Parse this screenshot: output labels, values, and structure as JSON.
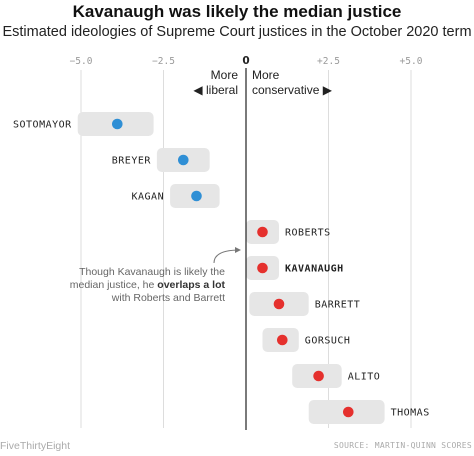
{
  "title": "Kavanaugh was likely the median justice",
  "subtitle": "Estimated ideologies of Supreme Court justices in the October 2020 term",
  "footer": {
    "brand": "FiveThirtyEight",
    "source": "SOURCE: MARTIN-QUINN SCORES"
  },
  "chart_data": {
    "type": "scatter",
    "subtype": "dot-with-range",
    "xlim": [
      -5.5,
      6.3
    ],
    "x_ticks": [
      {
        "value": -5.0,
        "label": "−5.0"
      },
      {
        "value": -2.5,
        "label": "−2.5"
      },
      {
        "value": 0,
        "label": "0"
      },
      {
        "value": 2.5,
        "label": "+2.5"
      },
      {
        "value": 5.0,
        "label": "+5.0"
      }
    ],
    "grid": true,
    "direction_labels": {
      "left_line1": "More",
      "left_line2": "◀ liberal",
      "right_line1": "More",
      "right_line2": "conservative ▶"
    },
    "justices": [
      {
        "name": "SOTOMAYOR",
        "estimate": -3.9,
        "low": -5.1,
        "high": -2.8,
        "label_side": "left",
        "bold": false,
        "color": "#2f8fd5"
      },
      {
        "name": "BREYER",
        "estimate": -1.9,
        "low": -2.7,
        "high": -1.1,
        "label_side": "left",
        "bold": false,
        "color": "#2f8fd5"
      },
      {
        "name": "KAGAN",
        "estimate": -1.5,
        "low": -2.3,
        "high": -0.8,
        "label_side": "left",
        "bold": false,
        "color": "#2f8fd5"
      },
      {
        "name": "ROBERTS",
        "estimate": 0.5,
        "low": 0.0,
        "high": 1.0,
        "label_side": "right",
        "bold": false,
        "color": "#e5302d"
      },
      {
        "name": "KAVANAUGH",
        "estimate": 0.5,
        "low": 0.0,
        "high": 1.0,
        "label_side": "right",
        "bold": true,
        "color": "#e5302d"
      },
      {
        "name": "BARRETT",
        "estimate": 1.0,
        "low": 0.1,
        "high": 1.9,
        "label_side": "right",
        "bold": false,
        "color": "#e5302d"
      },
      {
        "name": "GORSUCH",
        "estimate": 1.1,
        "low": 0.5,
        "high": 1.6,
        "label_side": "right",
        "bold": false,
        "color": "#e5302d"
      },
      {
        "name": "ALITO",
        "estimate": 2.2,
        "low": 1.4,
        "high": 2.9,
        "label_side": "right",
        "bold": false,
        "color": "#e5302d"
      },
      {
        "name": "THOMAS",
        "estimate": 3.1,
        "low": 1.9,
        "high": 4.2,
        "label_side": "right",
        "bold": false,
        "color": "#e5302d"
      }
    ],
    "annotation": {
      "line1": "Though Kavanaugh is likely the",
      "line2": "median justice, he",
      "line2_bold": "overlaps a lot",
      "line3": "with Roberts and Barrett",
      "points_to": "KAVANAUGH"
    },
    "colors": {
      "liberal": "#2f8fd5",
      "conservative": "#e5302d",
      "range_band": "#e6e6e6",
      "grid": "#dddddd"
    }
  }
}
